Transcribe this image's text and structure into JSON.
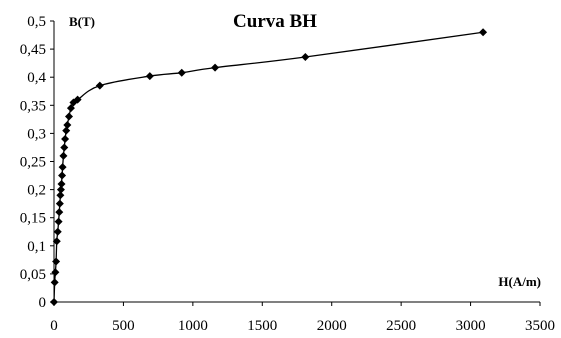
{
  "chart_data": {
    "type": "scatter",
    "title": "Curva BH",
    "xlabel": "H(A/m)",
    "ylabel": "B(T)",
    "xlim": [
      0,
      3500
    ],
    "ylim": [
      0,
      0.5
    ],
    "x_ticks": [
      "0",
      "500",
      "1000",
      "1500",
      "2000",
      "2500",
      "3000",
      "3500"
    ],
    "y_ticks": [
      "0",
      "0,05",
      "0,1",
      "0,15",
      "0,2",
      "0,25",
      "0,3",
      "0,35",
      "0,4",
      "0,45",
      "0,5"
    ],
    "grid": false,
    "legend": "none",
    "marker": "diamond",
    "line": "smooth",
    "series": [
      {
        "color": "#000000",
        "points": [
          [
            0,
            0
          ],
          [
            5,
            0.035
          ],
          [
            10,
            0.053
          ],
          [
            15,
            0.072
          ],
          [
            20,
            0.108
          ],
          [
            27,
            0.125
          ],
          [
            33,
            0.143
          ],
          [
            38,
            0.16
          ],
          [
            42,
            0.175
          ],
          [
            46,
            0.19
          ],
          [
            50,
            0.2
          ],
          [
            54,
            0.21
          ],
          [
            58,
            0.225
          ],
          [
            62,
            0.24
          ],
          [
            68,
            0.26
          ],
          [
            74,
            0.275
          ],
          [
            80,
            0.29
          ],
          [
            88,
            0.305
          ],
          [
            96,
            0.315
          ],
          [
            108,
            0.33
          ],
          [
            122,
            0.345
          ],
          [
            140,
            0.355
          ],
          [
            170,
            0.36
          ],
          [
            330,
            0.385
          ],
          [
            690,
            0.402
          ],
          [
            920,
            0.408
          ],
          [
            1160,
            0.417
          ],
          [
            1810,
            0.436
          ],
          [
            3090,
            0.48
          ]
        ]
      }
    ]
  }
}
